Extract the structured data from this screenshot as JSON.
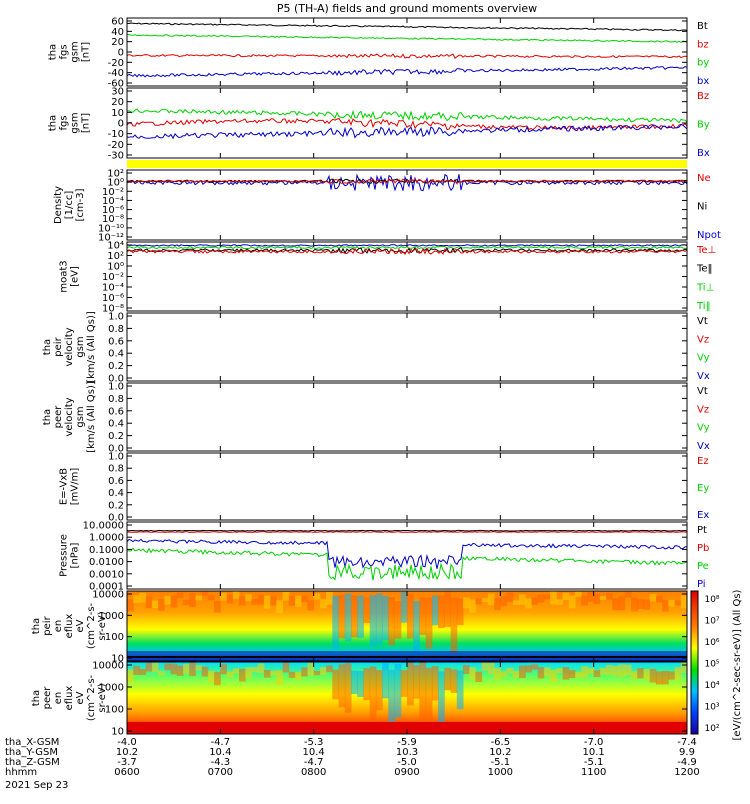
{
  "title": "P5 (TH-A) fields and ground moments overview",
  "colors": {
    "black": "#000000",
    "red": "#e00000",
    "green": "#00d000",
    "blue": "#0000c8",
    "yellow": "#ffff00"
  },
  "panels": [
    {
      "id": "fgs_gsm",
      "ylabel_lines": [
        "tha",
        "fgs",
        "gsm",
        "[nT]"
      ],
      "yticks": [
        "60",
        "40",
        "20",
        "0",
        "-20",
        "-40",
        "-60"
      ],
      "legend": [
        {
          "label": "Bt",
          "color": "black"
        },
        {
          "label": "bz",
          "color": "red"
        },
        {
          "label": "by",
          "color": "green"
        },
        {
          "label": "bx",
          "color": "blue"
        }
      ]
    },
    {
      "id": "fgs_gsm2",
      "ylabel_lines": [
        "tha",
        "fgs",
        "gsm",
        "[nT]"
      ],
      "yticks": [
        "30",
        "20",
        "10",
        "0",
        "-10",
        "-20",
        "-30"
      ],
      "legend": [
        {
          "label": "Bz",
          "color": "red"
        },
        {
          "label": "By",
          "color": "green"
        },
        {
          "label": "Bx",
          "color": "blue"
        }
      ]
    },
    {
      "id": "density",
      "ylabel_lines": [
        "Density",
        "[1/cc]",
        "[cm-3]"
      ],
      "yticks": [
        "10²",
        "10⁰",
        "10⁻²",
        "10⁻⁴",
        "10⁻⁶",
        "10⁻⁸",
        "10⁻¹⁰",
        "10⁻¹²"
      ],
      "legend": [
        {
          "label": "Ne",
          "color": "red"
        },
        {
          "label": "Ni",
          "color": "black"
        },
        {
          "label": "Npot",
          "color": "blue"
        }
      ]
    },
    {
      "id": "temperature",
      "ylabel_lines": [
        "moat3",
        "[eV]"
      ],
      "yticks": [
        "10⁴",
        "10²",
        "10⁰",
        "10⁻²",
        "10⁻⁴",
        "10⁻⁶",
        "10⁻⁸"
      ],
      "legend": [
        {
          "label": "Te⊥",
          "color": "red"
        },
        {
          "label": "Te‖",
          "color": "black"
        },
        {
          "label": "Ti⊥",
          "color": "green"
        },
        {
          "label": "Ti‖",
          "color": "green"
        }
      ]
    },
    {
      "id": "peir_velocity",
      "ylabel_lines": [
        "tha",
        "peir",
        "velocity",
        "gsm",
        "[km/s (All Qs)]"
      ],
      "yticks": [
        "1.0",
        "0.8",
        "0.6",
        "0.4",
        "0.2",
        "0.0"
      ],
      "legend": [
        {
          "label": "Vt",
          "color": "black"
        },
        {
          "label": "Vz",
          "color": "red"
        },
        {
          "label": "Vy",
          "color": "green"
        },
        {
          "label": "Vx",
          "color": "blue"
        }
      ]
    },
    {
      "id": "peer_velocity",
      "ylabel_lines": [
        "tha",
        "peer",
        "velocity",
        "gsm",
        "[km/s (All Qs)]"
      ],
      "yticks": [
        "1.0",
        "0.8",
        "0.6",
        "0.4",
        "0.2",
        "0.0"
      ],
      "legend": [
        {
          "label": "Vt",
          "color": "black"
        },
        {
          "label": "Vz",
          "color": "red"
        },
        {
          "label": "Vy",
          "color": "green"
        },
        {
          "label": "Vx",
          "color": "blue"
        }
      ]
    },
    {
      "id": "efield",
      "ylabel_lines": [
        "E=-VxB",
        "[mV/m]"
      ],
      "yticks": [
        "1.0",
        "0.8",
        "0.6",
        "0.4",
        "0.2",
        "0.0"
      ],
      "legend": [
        {
          "label": "Ez",
          "color": "red"
        },
        {
          "label": "Ey",
          "color": "green"
        },
        {
          "label": "Ex",
          "color": "blue"
        }
      ]
    },
    {
      "id": "pressure",
      "ylabel_lines": [
        "Pressure",
        "[nPa]"
      ],
      "yticks": [
        "10.0000",
        "1.0000",
        "0.1000",
        "0.0100",
        "0.0010",
        "0.0001"
      ],
      "legend": [
        {
          "label": "Pt",
          "color": "black"
        },
        {
          "label": "Pb",
          "color": "red"
        },
        {
          "label": "Pe",
          "color": "green"
        },
        {
          "label": "Pi",
          "color": "blue"
        }
      ]
    },
    {
      "id": "peir_eflux",
      "ylabel_lines": [
        "tha",
        "peir",
        "en",
        "eflux",
        "eV",
        "(cm^2-s-",
        "sr-eV)"
      ],
      "yticks": [
        "10000",
        "1000",
        "100",
        "10"
      ]
    },
    {
      "id": "peer_eflux",
      "ylabel_lines": [
        "tha",
        "peer",
        "en",
        "eflux",
        "eV",
        "(cm^2-s-",
        "sr-eV)"
      ],
      "yticks": [
        "10000",
        "1000",
        "100",
        "10"
      ]
    }
  ],
  "colorbar": {
    "ticks": [
      "10⁸",
      "10⁷",
      "10⁶",
      "10⁵",
      "10⁴",
      "10³",
      "10²"
    ],
    "label": "[eV/(cm^2-sec-sr-eV)] (All Qs)"
  },
  "xaxis": {
    "rows": [
      {
        "label": "tha_X-GSM",
        "values": [
          "-4.0",
          "-4.7",
          "-5.3",
          "-5.9",
          "-6.5",
          "-7.0",
          "-7.4"
        ]
      },
      {
        "label": "tha_Y-GSM",
        "values": [
          "10.2",
          "10.4",
          "10.4",
          "10.3",
          "10.2",
          "10.1",
          "9.9"
        ]
      },
      {
        "label": "tha_Z-GSM",
        "values": [
          "-3.7",
          "-4.3",
          "-4.7",
          "-5.0",
          "-5.1",
          "-5.1",
          "-4.9"
        ]
      },
      {
        "label": "hhmm",
        "values": [
          "0600",
          "0700",
          "0800",
          "0900",
          "1000",
          "1100",
          "1200"
        ]
      }
    ],
    "date": "2021 Sep 23"
  },
  "chart_data": {
    "type": "line",
    "title": "P5 (TH-A) fields and ground moments overview",
    "x": [
      "0600",
      "0700",
      "0800",
      "0900",
      "1000",
      "1100",
      "1200"
    ],
    "series": [
      {
        "name": "Bt",
        "values": [
          50,
          52,
          49,
          44,
          42,
          42,
          40
        ]
      },
      {
        "name": "bz",
        "values": [
          -5,
          -6,
          -8,
          -5,
          -5,
          -4,
          -6
        ]
      },
      {
        "name": "by",
        "values": [
          30,
          27,
          25,
          24,
          23,
          20,
          18
        ]
      },
      {
        "name": "bx",
        "values": [
          -35,
          -40,
          -35,
          -33,
          -28,
          -27,
          -25
        ]
      },
      {
        "name": "Bz",
        "values": [
          -5,
          -5,
          -2,
          2,
          -2,
          -3,
          2
        ]
      },
      {
        "name": "By",
        "values": [
          8,
          2,
          -2,
          0,
          -3,
          0,
          2
        ]
      },
      {
        "name": "Bx",
        "values": [
          -10,
          -20,
          -12,
          -5,
          -5,
          -8,
          -5
        ]
      }
    ]
  }
}
